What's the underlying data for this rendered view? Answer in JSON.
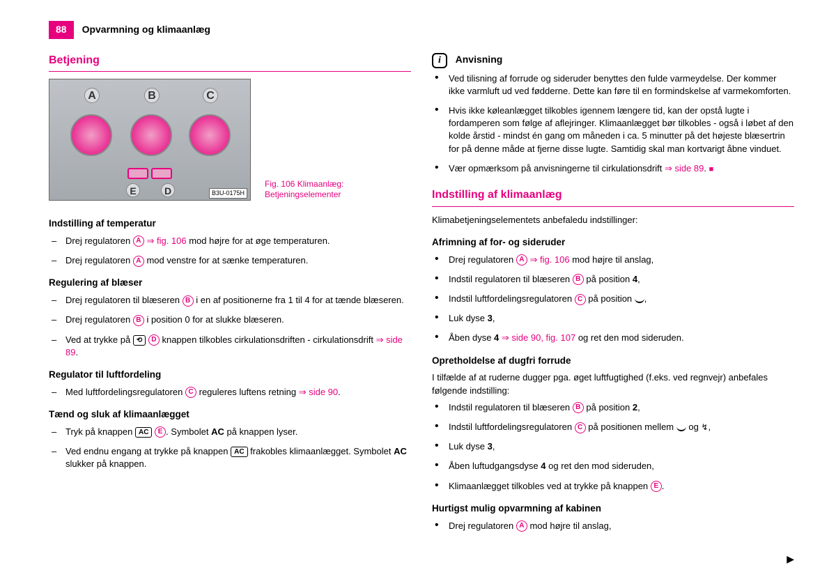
{
  "page_number": "88",
  "header": "Opvarmning og klimaanlæg",
  "colors": {
    "accent": "#e6007e"
  },
  "fig": {
    "id": "B3U-0175H",
    "caption_line1": "Fig. 106   Klimaanlæg:",
    "caption_line2": "Betjeningselementer",
    "labels": {
      "a": "A",
      "b": "B",
      "c": "C",
      "d": "D",
      "e": "E"
    }
  },
  "left": {
    "title": "Betjening",
    "h1": "Indstilling af temperatur",
    "h1_items": [
      "Drej regulatoren |A| ⇒ fig. 106 mod højre for at øge temperaturen.",
      "Drej regulatoren |A| mod venstre for at sænke temperaturen."
    ],
    "h2": "Regulering af blæser",
    "h2_items": [
      "Drej regulatoren til blæseren |B| i en af positionerne fra 1 til 4 for at tænde blæseren.",
      "Drej regulatoren |B| i position 0 for at slukke blæseren.",
      "Ved at trykke på [⟲] |D| knappen tilkobles cirkulationsdriften - cirkulationsdrift ⇒ side 89."
    ],
    "h3": "Regulator til luftfordeling",
    "h3_items": [
      "Med luftfordelingsregulatoren |C| reguleres luftens retning ⇒ side 90."
    ],
    "h4": "Tænd og sluk af klimaanlægget",
    "h4_items": [
      "Tryk på knappen [AC] |E|. Symbolet **AC** på knappen lyser.",
      "Ved endnu engang at trykke på knappen [AC] frakobles klimaanlægget. Symbolet **AC** slukker på knappen."
    ]
  },
  "right": {
    "info_title": "Anvisning",
    "info_items": [
      "Ved tilisning af forrude og sideruder benyttes den fulde varmeydelse. Der kommer ikke varmluft ud ved fødderne. Dette kan føre til en formindskelse af varmekomforten.",
      "Hvis ikke køleanlægget tilkobles igennem længere tid, kan der opstå lugte i fordamperen som følge af aflejringer. Klimaanlægget bør tilkobles - også i løbet af den kolde årstid - mindst én gang om måneden i ca. 5 minutter på det højeste blæsertrin for på denne måde at fjerne disse lugte. Samtidig skal man kortvarigt åbne vinduet.",
      "Vær opmærksom på anvisningerne til cirkulationsdrift ⇒ side 89."
    ],
    "title2": "Indstilling af klimaanlæg",
    "intro2": "Klimabetjeningselementets anbefaledu indstillinger:",
    "h5": "Afrimning af for- og sideruder",
    "h5_items": [
      "Drej regulatoren |A| ⇒ fig. 106 mod højre til anslag,",
      "Indstil regulatoren til blæseren |B| på position **4**,",
      "Indstil luftfordelingsregulatoren |C| på position ⌒,",
      "Luk dyse **3**,",
      "Åben dyse **4** ⇒ side 90, fig. 107 og ret den mod sideruden."
    ],
    "h6": "Opretholdelse af dugfri forrude",
    "intro6": "I tilfælde af at ruderne dugger pga. øget luftfugtighed (f.eks. ved regnvejr) anbefales følgende indstilling:",
    "h6_items": [
      "Indstil regulatoren til blæseren |B| på position **2**,",
      "Indstil luftfordelingsregulatoren |C| på positionen mellem ⌒ og ⤳,",
      "Luk dyse **3**,",
      "Åben luftudgangsdyse **4** og ret den mod sideruden,",
      "Klimaanlægget tilkobles ved at trykke på knappen |E|."
    ],
    "h7": "Hurtigst mulig opvarmning af kabinen",
    "h7_items": [
      "Drej regulatoren |A| mod højre til anslag,"
    ]
  }
}
